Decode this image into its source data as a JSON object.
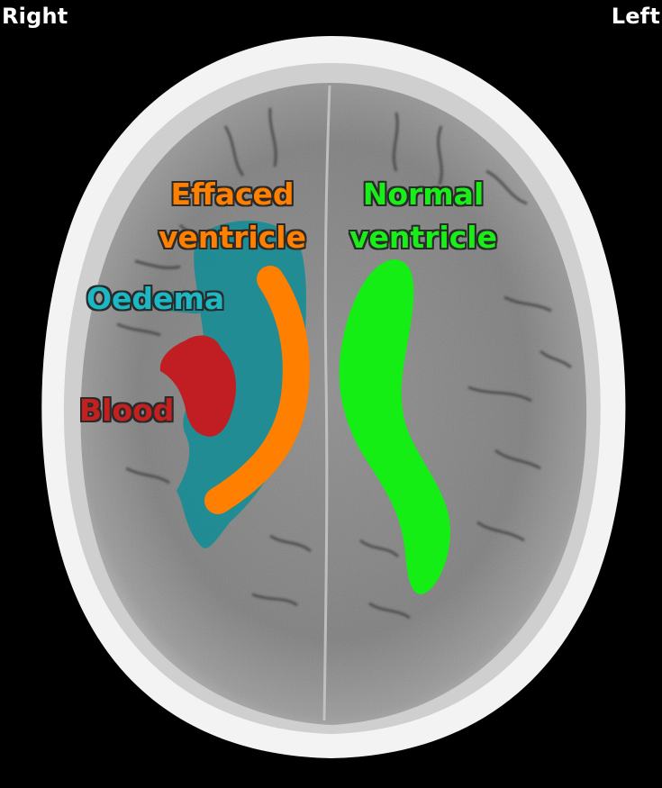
{
  "orientation": {
    "right": "Right",
    "left": "Left"
  },
  "labels": {
    "effaced_ventricle": {
      "line1": "Effaced",
      "line2": "ventricle",
      "color": "#ff7f00"
    },
    "normal_ventricle": {
      "line1": "Normal",
      "line2": "ventricle",
      "color": "#19ee19"
    },
    "oedema": {
      "text": "Oedema",
      "color": "#1bb8c4"
    },
    "blood": {
      "text": "Blood",
      "color": "#c42020"
    }
  },
  "regions": {
    "skull_color": "#f2f2f2",
    "brain_color": "#8c8c8c",
    "oedema_overlay_color": "#138c96",
    "blood_overlay_color": "#c01e22",
    "effaced_ventricle_color": "#ff7f00",
    "normal_ventricle_color": "#14ee14"
  }
}
